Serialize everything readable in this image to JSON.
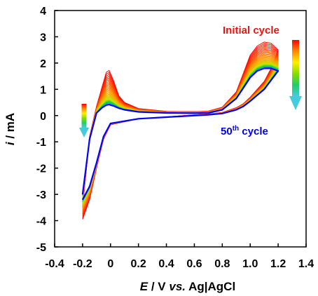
{
  "chart_data": {
    "type": "line",
    "xlabel": {
      "var": "E",
      "unit": " / V ",
      "vs": "vs.",
      "ref": " Ag|AgCl"
    },
    "ylabel": {
      "var": "i",
      "unit": " / mA"
    },
    "xlim": [
      -0.4,
      1.4
    ],
    "ylim": [
      -5,
      4
    ],
    "xticks": [
      -0.4,
      -0.2,
      0,
      0.2,
      0.4,
      0.6,
      0.8,
      1.0,
      1.2,
      1.4
    ],
    "xtick_labels": [
      "-0.4",
      "-0.2",
      "0",
      "0.2",
      "0.4",
      "0.6",
      "0.8",
      "1.0",
      "1.2",
      "1.4"
    ],
    "yticks": [
      -5,
      -4,
      -3,
      -2,
      -1,
      0,
      1,
      2,
      3,
      4
    ],
    "ytick_labels": [
      "-5",
      "-4",
      "-3",
      "-2",
      "-1",
      "0",
      "1",
      "2",
      "3",
      "4"
    ],
    "grid": false,
    "cycles": {
      "count": 50,
      "first_color": "#ff0000",
      "last_color": "#0000ff"
    },
    "series": [
      {
        "cycle": 1,
        "forward": {
          "x": [
            -0.2,
            -0.15,
            -0.1,
            -0.06,
            -0.03,
            -0.01,
            0.02,
            0.06,
            0.1,
            0.2,
            0.4,
            0.6,
            0.7,
            0.8,
            0.9,
            0.95,
            1.0,
            1.05,
            1.1,
            1.15,
            1.2
          ],
          "y": [
            -3.5,
            -0.8,
            0.35,
            1.1,
            1.65,
            1.72,
            1.35,
            0.75,
            0.5,
            0.27,
            0.16,
            0.15,
            0.17,
            0.32,
            0.9,
            1.6,
            2.3,
            2.65,
            2.8,
            2.75,
            2.5
          ]
        },
        "reverse": {
          "x": [
            1.2,
            1.15,
            1.1,
            1.0,
            0.95,
            0.9,
            0.8,
            0.7,
            0.6,
            0.4,
            0.2,
            0.0,
            -0.05,
            -0.1,
            -0.15,
            -0.2
          ],
          "y": [
            2.5,
            1.8,
            1.3,
            0.7,
            0.45,
            0.3,
            0.12,
            0.06,
            0.03,
            -0.05,
            -0.12,
            -0.35,
            -0.9,
            -2.0,
            -3.2,
            -3.95
          ]
        }
      },
      {
        "cycle": 50,
        "forward": {
          "x": [
            -0.2,
            -0.15,
            -0.1,
            -0.06,
            -0.03,
            -0.01,
            0.02,
            0.06,
            0.1,
            0.2,
            0.4,
            0.6,
            0.7,
            0.8,
            0.9,
            0.95,
            1.0,
            1.05,
            1.1,
            1.15,
            1.2
          ],
          "y": [
            -3.0,
            -0.9,
            0.1,
            0.3,
            0.4,
            0.42,
            0.37,
            0.28,
            0.22,
            0.14,
            0.1,
            0.09,
            0.1,
            0.22,
            0.65,
            1.05,
            1.45,
            1.7,
            1.8,
            1.8,
            1.7
          ]
        },
        "reverse": {
          "x": [
            1.2,
            1.15,
            1.1,
            1.0,
            0.95,
            0.9,
            0.8,
            0.7,
            0.6,
            0.4,
            0.2,
            0.0,
            -0.05,
            -0.1,
            -0.15,
            -0.2
          ],
          "y": [
            1.7,
            1.35,
            1.0,
            0.55,
            0.35,
            0.22,
            0.08,
            0.03,
            0.0,
            -0.06,
            -0.12,
            -0.3,
            -0.8,
            -1.8,
            -2.7,
            -3.2
          ]
        }
      }
    ],
    "annotations": [
      {
        "id": "initial",
        "text": "Initial cycle",
        "color": "#ee1111"
      },
      {
        "id": "last",
        "text": "50",
        "sup": "th",
        "tail": " cycle",
        "color": "#0000ee"
      }
    ],
    "gradient_arrow_colors": [
      "#ff0000",
      "#ff8800",
      "#ffee00",
      "#88dd00",
      "#22cc66",
      "#44ccdd"
    ]
  }
}
